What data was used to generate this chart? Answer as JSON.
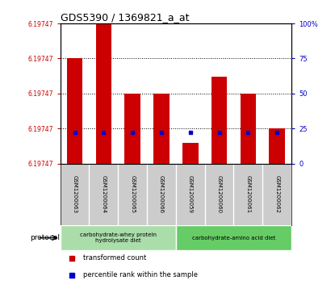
{
  "title": "GDS5390 / 1369821_a_at",
  "samples": [
    "GSM1200063",
    "GSM1200064",
    "GSM1200065",
    "GSM1200066",
    "GSM1200059",
    "GSM1200060",
    "GSM1200061",
    "GSM1200062"
  ],
  "bar_heights": [
    75,
    100,
    50,
    50,
    15,
    62,
    50,
    25
  ],
  "percentile_values": [
    22,
    22,
    22,
    22,
    22,
    22,
    22,
    22
  ],
  "ytick_label": "6.19747",
  "yticks_positions": [
    0,
    25,
    50,
    75,
    100
  ],
  "right_tick_labels": [
    "0",
    "25",
    "50",
    "75",
    "100%"
  ],
  "bar_color": "#cc0000",
  "percentile_color": "#0000cc",
  "protocol_groups": [
    {
      "label": "carbohydrate-whey protein\nhydrolysate diet",
      "start": 0,
      "end": 4,
      "color": "#aaddaa"
    },
    {
      "label": "carbohydrate-amino acid diet",
      "start": 4,
      "end": 8,
      "color": "#66cc66"
    }
  ],
  "protocol_label": "protocol",
  "legend_items": [
    {
      "color": "#cc0000",
      "marker": "s",
      "label": "transformed count"
    },
    {
      "color": "#0000cc",
      "marker": "s",
      "label": "percentile rank within the sample"
    }
  ],
  "background_color": "#ffffff",
  "plot_bg_color": "#ffffff",
  "sample_area_color": "#cccccc",
  "title_color": "#000000",
  "left_label_color": "#cc0000",
  "right_label_color": "#0000cc",
  "grid_color": "#000000",
  "grid_style": "dotted"
}
